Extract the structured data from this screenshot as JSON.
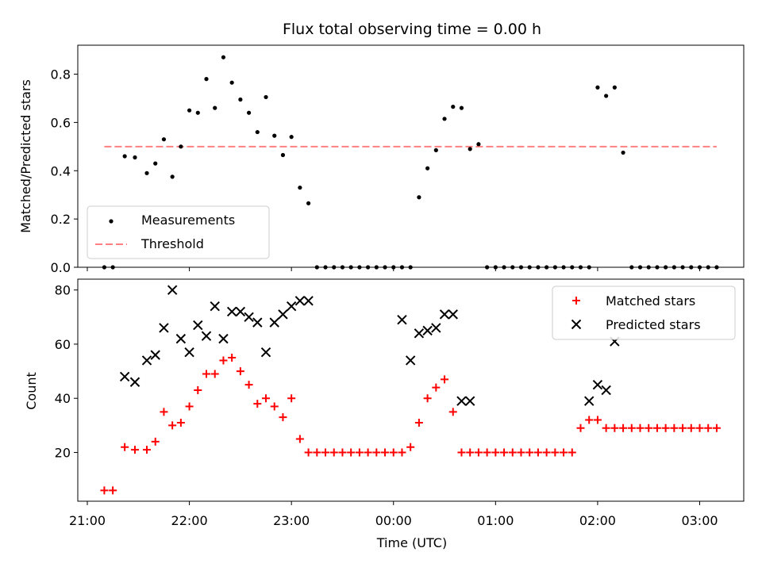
{
  "chart_data": [
    {
      "type": "scatter",
      "title": "Flux total observing time = 0.00 h",
      "xlabel": "",
      "ylabel": "Matched/Predicted stars",
      "ylim": [
        0,
        0.92
      ],
      "yticks": [
        0.0,
        0.2,
        0.4,
        0.6,
        0.8
      ],
      "ytick_labels": [
        "0.0",
        "0.2",
        "0.4",
        "0.6",
        "0.8"
      ],
      "legend_placement": "lower-left",
      "series": [
        {
          "name": "Measurements",
          "marker": "dot",
          "color": "#000000",
          "x": [
            "21:10",
            "21:15",
            "21:22",
            "21:28",
            "21:35",
            "21:40",
            "21:45",
            "21:50",
            "21:55",
            "22:00",
            "22:05",
            "22:10",
            "22:15",
            "22:20",
            "22:25",
            "22:30",
            "22:35",
            "22:40",
            "22:45",
            "22:50",
            "22:55",
            "23:00",
            "23:05",
            "23:10",
            "23:15",
            "23:20",
            "23:25",
            "23:30",
            "23:35",
            "23:40",
            "23:45",
            "23:50",
            "23:55",
            "00:00",
            "00:05",
            "00:10",
            "00:15",
            "00:20",
            "00:25",
            "00:30",
            "00:35",
            "00:40",
            "00:45",
            "00:50",
            "00:55",
            "01:00",
            "01:05",
            "01:10",
            "01:15",
            "01:20",
            "01:25",
            "01:30",
            "01:35",
            "01:40",
            "01:45",
            "01:50",
            "01:55",
            "02:00",
            "02:05",
            "02:10",
            "02:15",
            "02:20",
            "02:25",
            "02:30",
            "02:35",
            "02:40",
            "02:45",
            "02:50",
            "02:55",
            "03:00",
            "03:05",
            "03:10"
          ],
          "y": [
            0.0,
            0.0,
            0.46,
            0.455,
            0.39,
            0.43,
            0.53,
            0.375,
            0.5,
            0.65,
            0.64,
            0.78,
            0.66,
            0.87,
            0.765,
            0.695,
            0.64,
            0.56,
            0.705,
            0.545,
            0.465,
            0.54,
            0.33,
            0.265,
            0.0,
            0.0,
            0.0,
            0.0,
            0.0,
            0.0,
            0.0,
            0.0,
            0.0,
            0.0,
            0.0,
            0.0,
            0.29,
            0.41,
            0.485,
            0.615,
            0.665,
            0.66,
            0.49,
            0.51,
            0.0,
            0.0,
            0.0,
            0.0,
            0.0,
            0.0,
            0.0,
            0.0,
            0.0,
            0.0,
            0.0,
            0.0,
            0.0,
            0.745,
            0.71,
            0.745,
            0.475,
            0.0,
            0.0,
            0.0,
            0.0,
            0.0,
            0.0,
            0.0,
            0.0,
            0.0,
            0.0,
            0.0
          ]
        },
        {
          "name": "Threshold",
          "marker": "dashed-line",
          "color": "#ff8080",
          "x": [
            "21:10",
            "03:10"
          ],
          "y": [
            0.5,
            0.5
          ]
        }
      ]
    },
    {
      "type": "scatter",
      "title": "",
      "xlabel": "Time (UTC)",
      "ylabel": "Count",
      "ylim": [
        2,
        84
      ],
      "yticks": [
        20,
        40,
        60,
        80
      ],
      "ytick_labels": [
        "20",
        "40",
        "60",
        "80"
      ],
      "xticks": [
        "21:00",
        "22:00",
        "23:00",
        "00:00",
        "01:00",
        "02:00",
        "03:00"
      ],
      "legend_placement": "upper-right",
      "series": [
        {
          "name": "Matched stars",
          "marker": "plus",
          "color": "#ff0000",
          "x": [
            "21:10",
            "21:15",
            "21:22",
            "21:28",
            "21:35",
            "21:40",
            "21:45",
            "21:50",
            "21:55",
            "22:00",
            "22:05",
            "22:10",
            "22:15",
            "22:20",
            "22:25",
            "22:30",
            "22:35",
            "22:40",
            "22:45",
            "22:50",
            "22:55",
            "23:00",
            "23:05",
            "23:10",
            "23:15",
            "23:20",
            "23:25",
            "23:30",
            "23:35",
            "23:40",
            "23:45",
            "23:50",
            "23:55",
            "00:00",
            "00:05",
            "00:10",
            "00:15",
            "00:20",
            "00:25",
            "00:30",
            "00:35",
            "00:40",
            "00:45",
            "00:50",
            "00:55",
            "01:00",
            "01:05",
            "01:10",
            "01:15",
            "01:20",
            "01:25",
            "01:30",
            "01:35",
            "01:40",
            "01:45",
            "01:50",
            "01:55",
            "02:00",
            "02:05",
            "02:10",
            "02:15",
            "02:20",
            "02:25",
            "02:30",
            "02:35",
            "02:40",
            "02:45",
            "02:50",
            "02:55",
            "03:00",
            "03:05",
            "03:10"
          ],
          "y": [
            6,
            6,
            22,
            21,
            21,
            24,
            35,
            30,
            31,
            37,
            43,
            49,
            49,
            54,
            55,
            50,
            45,
            38,
            40,
            37,
            33,
            40,
            25,
            20,
            20,
            20,
            20,
            20,
            20,
            20,
            20,
            20,
            20,
            20,
            20,
            22,
            31,
            40,
            44,
            47,
            35,
            20,
            20,
            20,
            20,
            20,
            20,
            20,
            20,
            20,
            20,
            20,
            20,
            20,
            20,
            29,
            32,
            32,
            29,
            29,
            29,
            29,
            29,
            29,
            29,
            29,
            29,
            29,
            29,
            29,
            29,
            29
          ]
        },
        {
          "name": "Predicted stars",
          "marker": "x",
          "color": "#000000",
          "x": [
            "21:22",
            "21:28",
            "21:35",
            "21:40",
            "21:45",
            "21:50",
            "21:55",
            "22:00",
            "22:05",
            "22:10",
            "22:15",
            "22:20",
            "22:25",
            "22:30",
            "22:35",
            "22:40",
            "22:45",
            "22:50",
            "22:55",
            "23:00",
            "23:05",
            "23:10",
            "00:05",
            "00:10",
            "00:15",
            "00:20",
            "00:25",
            "00:30",
            "00:35",
            "00:40",
            "00:45",
            "01:55",
            "02:00",
            "02:05",
            "02:10"
          ],
          "y": [
            48,
            46,
            54,
            56,
            66,
            80,
            62,
            57,
            67,
            63,
            74,
            62,
            72,
            72,
            70,
            68,
            57,
            68,
            71,
            74,
            76,
            76,
            69,
            54,
            64,
            65,
            66,
            71,
            71,
            39,
            39,
            39,
            45,
            43,
            61
          ]
        }
      ]
    }
  ]
}
